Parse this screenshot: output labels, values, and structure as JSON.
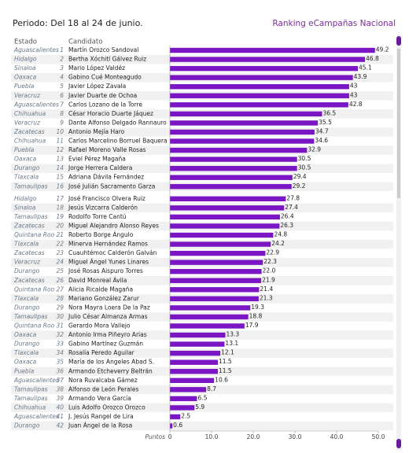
{
  "chart_data": {
    "type": "bar",
    "orientation": "horizontal",
    "title": "Ranking eCampañas Nacional",
    "subtitle": "Periodo: Del 18 al 24 de junio.",
    "state_header": "Estado",
    "category_header": "Candidato",
    "xlabel": "Puntos",
    "color": "#7a16c4",
    "states": [
      "Aguascalientes",
      "Hidalgo",
      "Sinaloa",
      "Oaxaca",
      "Puebla",
      "Veracruz",
      "Aguascalientes",
      "Chihuahua",
      "Veracruz",
      "Zacatecas",
      "Chihuahua",
      "Puebla",
      "Oaxaca",
      "Durango",
      "Tlaxcala",
      "Tamaulipas",
      "Hidalgo",
      "Sinaloa",
      "Tamaulipas",
      "Zacatecas",
      "Quintana Roo",
      "Tlaxcala",
      "Zacatecas",
      "Veracruz",
      "Durango",
      "Zacatecas",
      "Quintana Roo",
      "Tlaxcala",
      "Durango",
      "Tamaulipas",
      "Quintana Roo",
      "Oaxaca",
      "Durango",
      "Tlaxcala",
      "Oaxaca",
      "Puebla",
      "Aguascalientes",
      "Tamaulipas",
      "Tamaulipas",
      "Chihuahua",
      "Aguascalientes",
      "Durango"
    ],
    "ranks": [
      1,
      2,
      3,
      4,
      5,
      6,
      7,
      8,
      9,
      10,
      11,
      12,
      13,
      14,
      15,
      16,
      17,
      18,
      19,
      20,
      21,
      22,
      23,
      24,
      25,
      26,
      27,
      28,
      29,
      30,
      31,
      32,
      33,
      34,
      35,
      36,
      37,
      38,
      39,
      40,
      41,
      42
    ],
    "categories": [
      "Martín Orozco Sandoval",
      "Bertha Xóchitl Gálvez Ruiz",
      "Mario López Valdéz",
      "Gabino Cué Monteagudo",
      "Javier López Zavala",
      "Javier Duarte de Ochoa",
      "Carlos Lozano de la Torre",
      "César Horacio Duarte Jáquez",
      "Dante Alfonso Delgado Rannauro",
      "Antonio Mejía Haro",
      "Carlos Marcelino Borruel Baquera",
      "Rafael Moreno Valle Rosas",
      "Eviel Pérez Magaña",
      "Jorge Herrera Caldera",
      "Adriana Dávila Fernández",
      "José Julián Sacramento Garza",
      "José Francisco Olvera Ruiz",
      "Jesús Vizcarra Calderón",
      "Rodolfo Torre Cantú",
      "Miguel Alejandro Alonso Reyes",
      "Roberto Borge Ángulo",
      "Minerva Hernández Ramos",
      "Cuauhtémoc Calderón Galván",
      "Miguel Ángel Yunes Linares",
      "José Rosas Aispuro Torres",
      "David Monreal Ávila",
      "Alicia Ricalde Magaña",
      "Mariano González Zarur",
      "Nora Mayra Loera De la Paz",
      "Julio César Almanza Armas",
      "Gerardo Mora Vallejo",
      "Antonio Irma Piñeyro Arias",
      "Gabino Martínez Guzmán",
      "Rosalía Peredo Aguilar",
      "María de los Angeles Abad S.",
      "Armando Etcheverry Beltrán",
      "Nora Ruvalcaba Gámez",
      "Alfonso de León Perales",
      "Armando Vera García",
      "Luis Adolfo Orozco Orozco",
      "J. Jesús Rangel de Lira",
      "Juan Ángel de la Rosa"
    ],
    "values": [
      49.2,
      46.8,
      45.1,
      43.9,
      43,
      43,
      42.8,
      36.5,
      35.5,
      34.7,
      34.6,
      32.9,
      30.5,
      30.5,
      29.4,
      29.2,
      27.8,
      27.4,
      26.4,
      26.3,
      24.8,
      24.2,
      22.9,
      22.3,
      22.0,
      21.9,
      21.4,
      21.3,
      19.3,
      18.8,
      17.9,
      13.3,
      13.1,
      12.1,
      11.5,
      11.5,
      10.6,
      8.7,
      6.5,
      5.9,
      2.5,
      0.6
    ],
    "value_labels": [
      "49.2",
      "46.8",
      "45.1",
      "43.9",
      "43",
      "43",
      "42.8",
      "36.5",
      "35.5",
      "34.7",
      "34.6",
      "32.9",
      "30.5",
      "30.5",
      "29.4",
      "29.2",
      "27.8",
      "27.4",
      "26.4",
      "26.3",
      "24.8",
      "24.2",
      "22.9",
      "22.3",
      "22.0",
      "21.9",
      "21.4",
      "21.3",
      "19.3",
      "18.8",
      "17.9",
      "13.3",
      "13.1",
      "12.1",
      "11.5",
      "11.5",
      "10.6",
      "8.7",
      "6.5",
      "5.9",
      "2.5",
      "0.6"
    ],
    "xlim": [
      0,
      50
    ],
    "xticks": [
      0,
      {
        "value": 10,
        "label": "10.0"
      },
      {
        "value": 20,
        "label": "20.0"
      },
      {
        "value": 30,
        "label": "30.0"
      },
      {
        "value": 40,
        "label": "40.0"
      },
      {
        "value": 50,
        "label": "50.0"
      }
    ]
  }
}
